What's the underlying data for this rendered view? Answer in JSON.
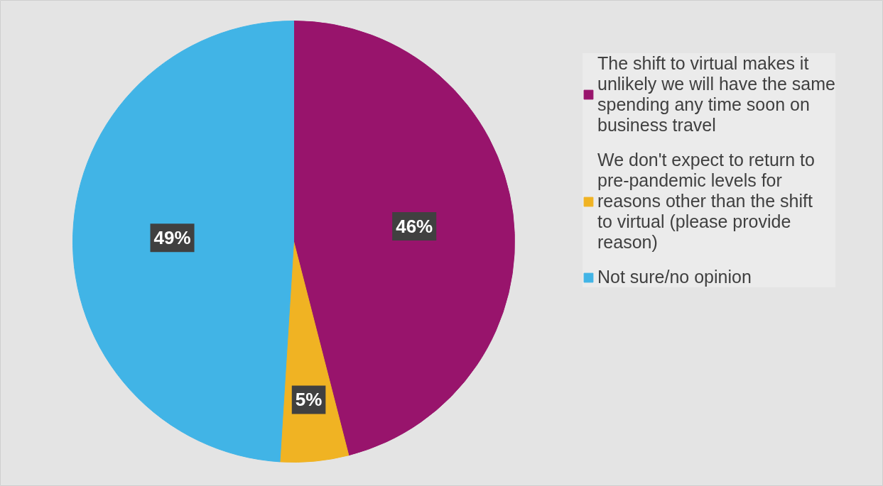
{
  "chart_data": {
    "type": "pie",
    "categories": [
      "The shift to virtual makes it unlikely we will have the same spending any time soon on business travel",
      "We don't expect to return to pre-pandemic levels for reasons other than the shift to virtual (please provide reason)",
      "Not sure/no opinion"
    ],
    "values": [
      46,
      5,
      49
    ],
    "colors": [
      "#98146c",
      "#f0b323",
      "#41b4e6"
    ],
    "value_labels": [
      "46%",
      "5%",
      "49%"
    ],
    "legend": "right"
  }
}
